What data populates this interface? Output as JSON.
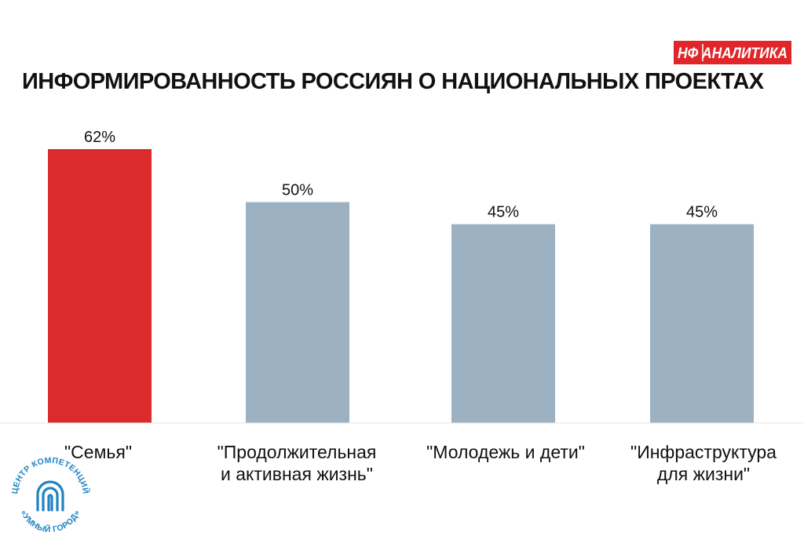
{
  "brand": {
    "badge_text": "НФ АНАЛИТИКА",
    "colors": {
      "badge_bg": "#e0262a",
      "badge_text": "#ffffff"
    }
  },
  "chart_data": {
    "type": "bar",
    "title": "ИНФОРМИРОВАННОСТЬ РОССИЯН О НАЦИОНАЛЬНЫХ ПРОЕКТАХ",
    "xlabel": "",
    "ylabel": "",
    "unit": "%",
    "ylim": [
      0,
      62
    ],
    "grid": false,
    "categories": [
      "\"Семья\"",
      "\"Продолжительная и активная жизнь\"",
      "\"Молодежь и дети\"",
      "\"Инфраструктура для жизни\""
    ],
    "category_lines": [
      [
        "\"Семья\""
      ],
      [
        "\"Продолжительная",
        "и активная жизнь\""
      ],
      [
        "\"Молодежь и дети\""
      ],
      [
        "\"Инфраструктура",
        "для жизни\""
      ]
    ],
    "values": [
      62,
      50,
      45,
      45
    ],
    "value_labels": [
      "62%",
      "50%",
      "45%",
      "45%"
    ],
    "colors": [
      "#dc2b2c",
      "#9cb2c2",
      "#9cb2c2",
      "#9cb2c2"
    ]
  },
  "logo": {
    "text_top": "ЦЕНТР КОМПЕТЕНЦИЙ",
    "text_bottom": "«УМНЫЙ ГОРОД»",
    "color": "#1f83c3",
    "icon": "fingerprint-arch-icon"
  }
}
